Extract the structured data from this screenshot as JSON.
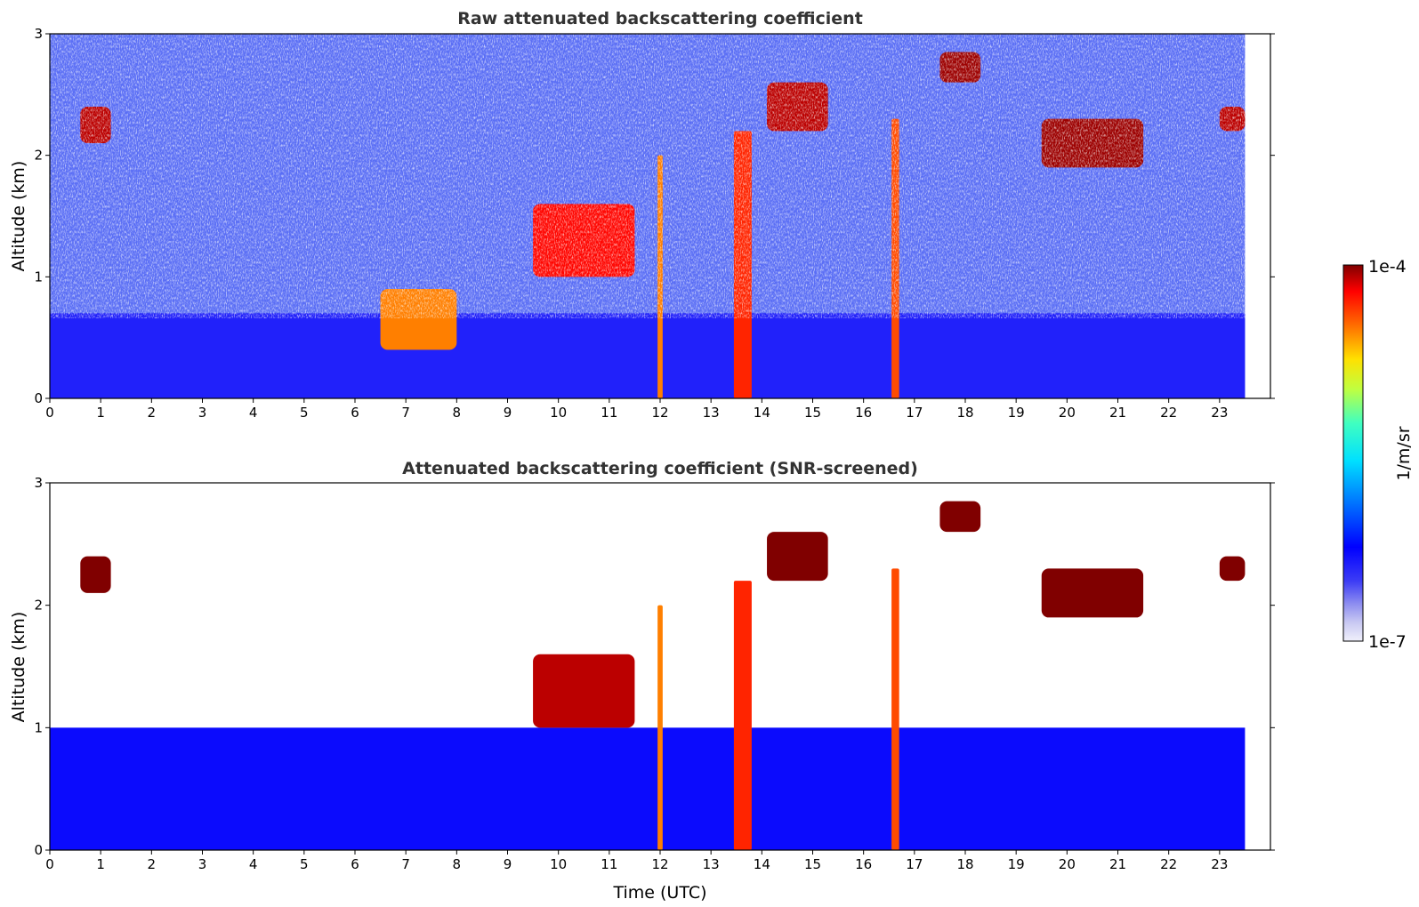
{
  "chart_data": [
    {
      "type": "heatmap",
      "title": "Raw attenuated backscattering coefficient",
      "xlabel": "",
      "ylabel": "Altitude (km)",
      "xlim": [
        0,
        24
      ],
      "ylim": [
        0,
        3
      ],
      "xticks": [
        "0",
        "1",
        "2",
        "3",
        "4",
        "5",
        "6",
        "7",
        "8",
        "9",
        "10",
        "11",
        "12",
        "13",
        "14",
        "15",
        "16",
        "17",
        "18",
        "19",
        "20",
        "21",
        "22",
        "23"
      ],
      "yticks": [
        "0",
        "1",
        "2",
        "3"
      ],
      "data_extent_hours": [
        0,
        23.5
      ],
      "features": [
        {
          "kind": "aerosol_layer",
          "x": [
            0,
            23.5
          ],
          "y": [
            0,
            0.7
          ],
          "value": 4e-07
        },
        {
          "kind": "cloud",
          "x": [
            0.6,
            1.2
          ],
          "y": [
            2.1,
            2.4
          ],
          "value": 8e-05
        },
        {
          "kind": "cloud",
          "x": [
            6.5,
            8.0
          ],
          "y": [
            0.4,
            0.9
          ],
          "value": 3e-05
        },
        {
          "kind": "cloud",
          "x": [
            9.5,
            11.5
          ],
          "y": [
            1.0,
            1.6
          ],
          "value": 6e-05
        },
        {
          "kind": "precipitation",
          "x": [
            11.95,
            12.05
          ],
          "y": [
            0,
            2.0
          ],
          "value": 3e-05
        },
        {
          "kind": "precipitation",
          "x": [
            13.45,
            13.8
          ],
          "y": [
            0,
            2.2
          ],
          "value": 5e-05
        },
        {
          "kind": "cloud",
          "x": [
            14.1,
            15.3
          ],
          "y": [
            2.2,
            2.6
          ],
          "value": 8e-05
        },
        {
          "kind": "precipitation",
          "x": [
            16.55,
            16.7
          ],
          "y": [
            0,
            2.3
          ],
          "value": 4e-05
        },
        {
          "kind": "cloud",
          "x": [
            17.5,
            18.3
          ],
          "y": [
            2.6,
            2.85
          ],
          "value": 9e-05
        },
        {
          "kind": "cloud",
          "x": [
            19.5,
            21.5
          ],
          "y": [
            1.9,
            2.3
          ],
          "value": 9e-05
        },
        {
          "kind": "cloud",
          "x": [
            23.0,
            23.5
          ],
          "y": [
            2.2,
            2.4
          ],
          "value": 8e-05
        }
      ]
    },
    {
      "type": "heatmap",
      "title": "Attenuated backscattering coefficient (SNR-screened)",
      "xlabel": "Time (UTC)",
      "ylabel": "Altitude (km)",
      "xlim": [
        0,
        24
      ],
      "ylim": [
        0,
        3
      ],
      "xticks": [
        "0",
        "1",
        "2",
        "3",
        "4",
        "5",
        "6",
        "7",
        "8",
        "9",
        "10",
        "11",
        "12",
        "13",
        "14",
        "15",
        "16",
        "17",
        "18",
        "19",
        "20",
        "21",
        "22",
        "23"
      ],
      "yticks": [
        "0",
        "1",
        "2",
        "3"
      ],
      "data_extent_hours": [
        0,
        23.5
      ],
      "features": [
        {
          "kind": "aerosol_layer",
          "x": [
            0,
            23.5
          ],
          "y": [
            0,
            1.0
          ],
          "value": 5e-07
        },
        {
          "kind": "cloud",
          "x": [
            0.6,
            1.2
          ],
          "y": [
            2.1,
            2.4
          ],
          "value": 0.0001
        },
        {
          "kind": "cloud",
          "x": [
            9.5,
            11.5
          ],
          "y": [
            1.0,
            1.6
          ],
          "value": 8e-05
        },
        {
          "kind": "precipitation",
          "x": [
            11.95,
            12.05
          ],
          "y": [
            0,
            2.0
          ],
          "value": 3e-05
        },
        {
          "kind": "precipitation",
          "x": [
            13.45,
            13.8
          ],
          "y": [
            0,
            2.2
          ],
          "value": 5e-05
        },
        {
          "kind": "cloud",
          "x": [
            14.1,
            15.3
          ],
          "y": [
            2.2,
            2.6
          ],
          "value": 0.0001
        },
        {
          "kind": "precipitation",
          "x": [
            16.55,
            16.7
          ],
          "y": [
            0,
            2.3
          ],
          "value": 4e-05
        },
        {
          "kind": "cloud",
          "x": [
            17.5,
            18.3
          ],
          "y": [
            2.6,
            2.85
          ],
          "value": 0.0001
        },
        {
          "kind": "cloud",
          "x": [
            19.5,
            21.5
          ],
          "y": [
            1.9,
            2.3
          ],
          "value": 0.0001
        },
        {
          "kind": "cloud",
          "x": [
            23.0,
            23.5
          ],
          "y": [
            2.2,
            2.4
          ],
          "value": 0.0001
        }
      ]
    }
  ],
  "colorbar": {
    "label": "1/m/sr",
    "min_label": "1e-7",
    "max_label": "1e-4",
    "min": 1e-07,
    "max": 0.0001,
    "scale": "log",
    "colormap": "jet"
  },
  "colors": {
    "title": "#333333",
    "background": "#ffffff"
  }
}
